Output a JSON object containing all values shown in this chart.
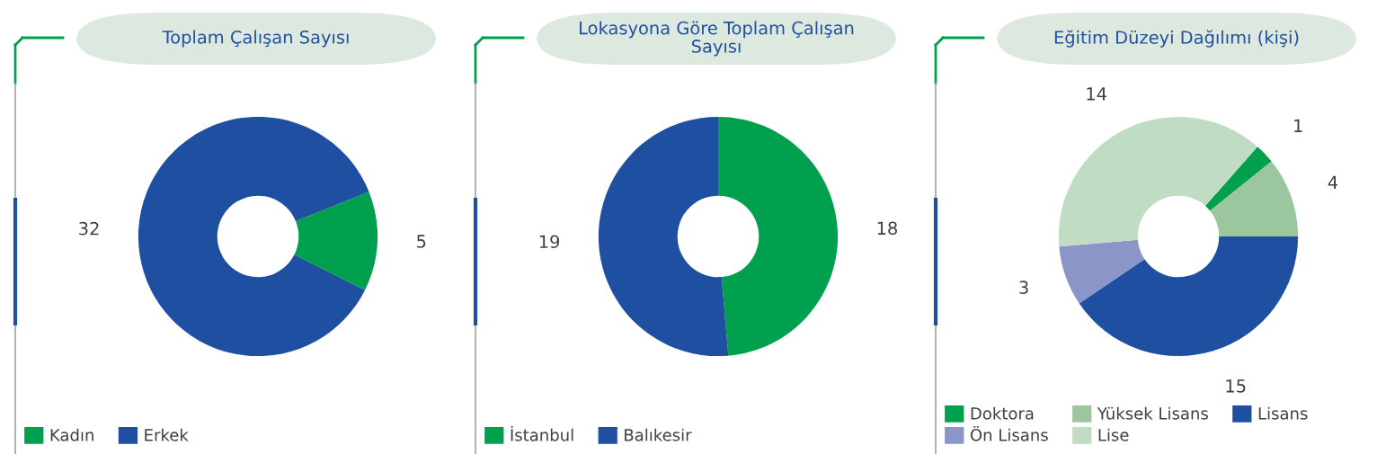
{
  "chart_data": [
    {
      "type": "donut",
      "title": "Toplam Çalışan Sayısı",
      "categories": [
        "Kadın",
        "Erkek"
      ],
      "values": [
        5,
        32
      ],
      "colors": [
        "#00a04f",
        "#1f4fa0"
      ],
      "data_labels": true,
      "legend": "bottom left"
    },
    {
      "type": "donut",
      "title": "Lokasyona Göre Toplam Çalışan Sayısı",
      "categories": [
        "İstanbul",
        "Balıkesir"
      ],
      "values": [
        18,
        19
      ],
      "colors": [
        "#00a04f",
        "#1f4fa0"
      ],
      "data_labels": true,
      "legend": "bottom left"
    },
    {
      "type": "donut",
      "title": "Eğitim Düzeyi Dağılımı (kişi)",
      "categories": [
        "Doktora",
        "Yüksek Lisans",
        "Lisans",
        "Ön Lisans",
        "Lise"
      ],
      "values": [
        1,
        4,
        15,
        3,
        14
      ],
      "colors": [
        "#00a04f",
        "#9cc79e",
        "#1f4fa0",
        "#8a96c8",
        "#c0dcc2"
      ],
      "data_labels": true,
      "legend": "bottom left"
    }
  ]
}
